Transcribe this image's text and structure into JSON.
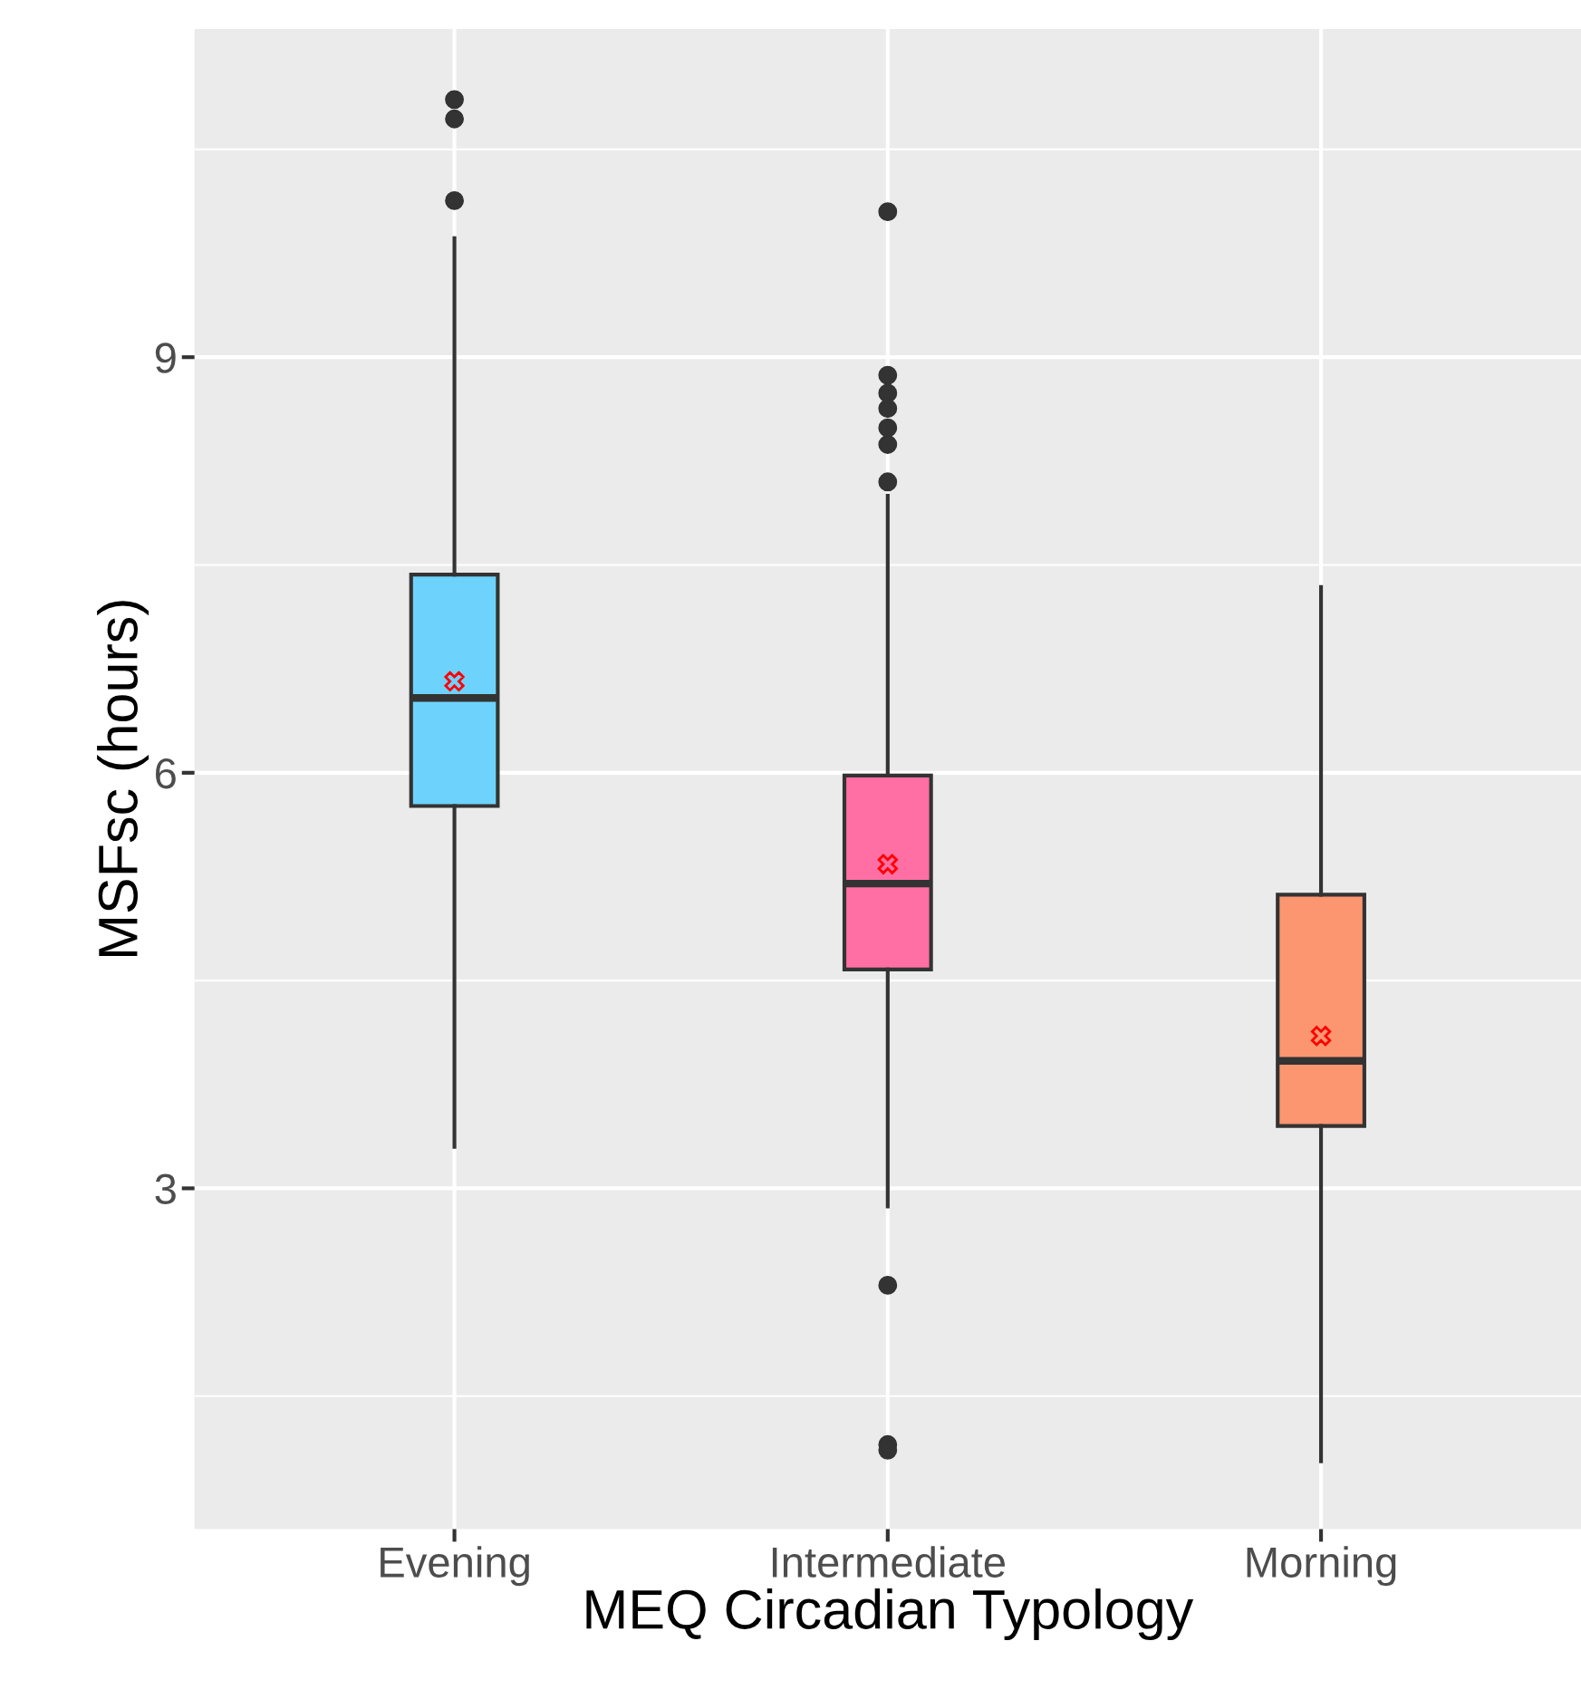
{
  "chart_data": {
    "type": "box",
    "xlabel": "MEQ Circadian Typology",
    "ylabel": "MSFsc (hours)",
    "categories": [
      "Evening",
      "Intermediate",
      "Morning"
    ],
    "colors": [
      "#6dd3fd",
      "#ff6fa3",
      "#fc9670"
    ],
    "boxes": [
      {
        "low": 3.3,
        "q1": 5.76,
        "median": 6.54,
        "q3": 7.43,
        "high": 9.86,
        "mean": 6.66,
        "outliers": [
          10.86,
          10.72,
          10.13
        ]
      },
      {
        "low": 2.87,
        "q1": 4.58,
        "median": 5.2,
        "q3": 5.98,
        "high": 8.0,
        "mean": 5.34,
        "outliers": [
          10.05,
          8.87,
          8.74,
          8.63,
          8.49,
          8.37,
          8.1,
          2.3,
          1.15,
          1.11
        ]
      },
      {
        "low": 1.03,
        "q1": 3.45,
        "median": 3.92,
        "q3": 5.12,
        "high": 7.34,
        "mean": 4.1
      }
    ],
    "ylim": [
      0.54,
      11.37
    ],
    "yticks": [
      {
        "value": 1.5,
        "label": null
      },
      3,
      {
        "value": 4.5,
        "label": null
      },
      6,
      {
        "value": 7.5,
        "label": null
      },
      9,
      {
        "value": 10.5,
        "label": null
      }
    ],
    "grid": true
  }
}
